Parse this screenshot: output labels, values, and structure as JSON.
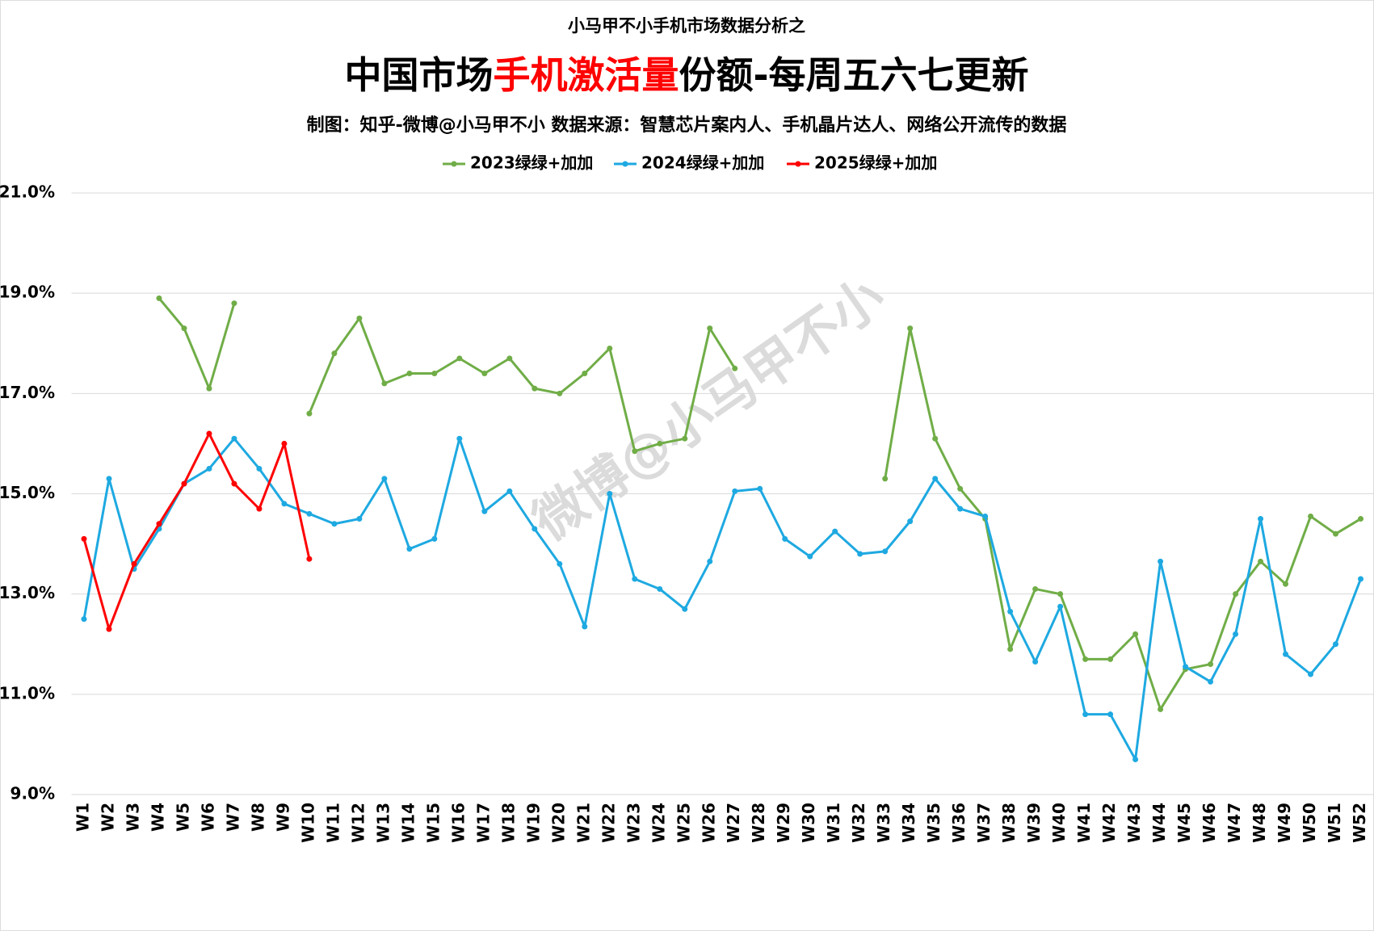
{
  "chart_data": {
    "type": "line",
    "supertitle": "小马甲不小手机市场数据分析之",
    "title": [
      "中国市场",
      "手机激活量",
      "份额-每周五六七更新"
    ],
    "title_highlight_color": "#ff0000",
    "subtitle": "制图：知乎-微博@小马甲不小  数据来源：智慧芯片案内人、手机晶片达人、网络公开流传的数据",
    "watermark": "微博@小马甲不小",
    "legend": "top",
    "grid": true,
    "categories": [
      "W1",
      "W2",
      "W3",
      "W4",
      "W5",
      "W6",
      "W7",
      "W8",
      "W9",
      "W10",
      "W11",
      "W12",
      "W13",
      "W14",
      "W15",
      "W16",
      "W17",
      "W18",
      "W19",
      "W20",
      "W21",
      "W22",
      "W23",
      "W24",
      "W25",
      "W26",
      "W27",
      "W28",
      "W29",
      "W30",
      "W31",
      "W32",
      "W33",
      "W34",
      "W35",
      "W36",
      "W37",
      "W38",
      "W39",
      "W40",
      "W41",
      "W42",
      "W43",
      "W44",
      "W45",
      "W46",
      "W47",
      "W48",
      "W49",
      "W50",
      "W51",
      "W52"
    ],
    "ylim": [
      9,
      21
    ],
    "yticks": [
      {
        "value": 9,
        "label": "9.0%"
      },
      {
        "value": 11,
        "label": "11.0%"
      },
      {
        "value": 13,
        "label": "13.0%"
      },
      {
        "value": 15,
        "label": "15.0%"
      },
      {
        "value": 17,
        "label": "17.0%"
      },
      {
        "value": 19,
        "label": "19.0%"
      },
      {
        "value": 21,
        "label": "21.0%"
      }
    ],
    "series": [
      {
        "name": "2023绿绿+加加",
        "color": "#70ad47",
        "values": [
          null,
          null,
          null,
          18.9,
          18.3,
          17.1,
          18.8,
          null,
          null,
          16.6,
          17.8,
          18.5,
          17.2,
          17.4,
          17.4,
          17.7,
          17.4,
          17.7,
          17.1,
          17.0,
          17.4,
          17.9,
          15.85,
          16.0,
          16.1,
          18.3,
          17.5,
          null,
          null,
          null,
          null,
          null,
          15.3,
          18.3,
          16.1,
          15.1,
          14.5,
          11.9,
          13.1,
          13.0,
          11.7,
          11.7,
          12.2,
          10.7,
          11.5,
          11.6,
          13.0,
          13.65,
          13.2,
          14.55,
          14.2,
          14.5
        ]
      },
      {
        "name": "2024绿绿+加加",
        "color": "#1ea9e1",
        "values": [
          12.5,
          15.3,
          13.5,
          14.3,
          15.2,
          15.5,
          16.1,
          15.5,
          14.8,
          14.6,
          14.4,
          14.5,
          15.3,
          13.9,
          14.1,
          16.1,
          14.65,
          15.05,
          14.3,
          13.6,
          12.35,
          15.0,
          13.3,
          13.1,
          12.7,
          13.65,
          15.05,
          15.1,
          14.1,
          13.75,
          14.25,
          13.8,
          13.85,
          14.45,
          15.3,
          14.7,
          14.55,
          12.65,
          11.65,
          12.75,
          10.6,
          10.6,
          9.7,
          13.65,
          11.55,
          11.25,
          12.2,
          14.5,
          11.8,
          11.4,
          12.0,
          13.3
        ]
      },
      {
        "name": "2025绿绿+加加",
        "color": "#ff0000",
        "values": [
          14.1,
          12.3,
          13.6,
          14.4,
          15.2,
          16.2,
          15.2,
          14.7,
          16.0,
          13.7,
          null,
          null,
          null,
          null,
          null,
          null,
          null,
          null,
          null,
          null,
          null,
          null,
          null,
          null,
          null,
          null,
          null,
          null,
          null,
          null,
          null,
          null,
          null,
          null,
          null,
          null,
          null,
          null,
          null,
          null,
          null,
          null,
          null,
          null,
          null,
          null,
          null,
          null,
          null,
          null,
          null,
          null
        ]
      }
    ]
  }
}
